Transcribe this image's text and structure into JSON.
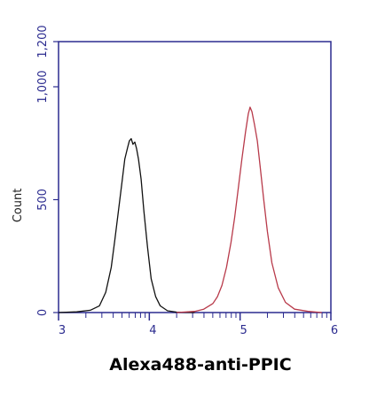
{
  "chart_data": {
    "type": "line",
    "title": "",
    "xlabel": "Alexa488-anti-PPIC",
    "ylabel": "Count",
    "x_scale": "log",
    "xlim": [
      3,
      6
    ],
    "ylim": [
      0,
      1200
    ],
    "x_ticks": [
      {
        "value": 3,
        "label": "3"
      },
      {
        "value": 4,
        "label": "4"
      },
      {
        "value": 5,
        "label": "5"
      },
      {
        "value": 6,
        "label": "6"
      }
    ],
    "y_ticks": [
      {
        "value": 0,
        "label": "0"
      },
      {
        "value": 500,
        "label": "500"
      },
      {
        "value": 1000,
        "label": "1,000"
      },
      {
        "value": 1200,
        "label": "1,200"
      }
    ],
    "grid": false,
    "legend": "none",
    "series": [
      {
        "color": "#111111",
        "x": [
          3.0,
          3.2,
          3.35,
          3.45,
          3.52,
          3.58,
          3.62,
          3.66,
          3.7,
          3.73,
          3.76,
          3.78,
          3.8,
          3.82,
          3.84,
          3.86,
          3.88,
          3.91,
          3.94,
          3.98,
          4.02,
          4.07,
          4.12,
          4.2,
          4.3,
          4.5
        ],
        "y": [
          0,
          3,
          10,
          30,
          90,
          200,
          320,
          450,
          580,
          680,
          730,
          760,
          770,
          745,
          755,
          725,
          680,
          590,
          450,
          290,
          150,
          70,
          30,
          8,
          2,
          0
        ]
      },
      {
        "color": "#b83a4a",
        "x": [
          4.3,
          4.5,
          4.6,
          4.7,
          4.75,
          4.8,
          4.85,
          4.9,
          4.94,
          4.98,
          5.02,
          5.06,
          5.09,
          5.11,
          5.13,
          5.16,
          5.19,
          5.22,
          5.26,
          5.3,
          5.35,
          5.42,
          5.5,
          5.6,
          5.75,
          5.9
        ],
        "y": [
          0,
          5,
          15,
          40,
          70,
          120,
          200,
          310,
          420,
          550,
          680,
          800,
          880,
          910,
          890,
          830,
          760,
          650,
          500,
          360,
          220,
          110,
          45,
          15,
          5,
          0
        ]
      }
    ]
  }
}
